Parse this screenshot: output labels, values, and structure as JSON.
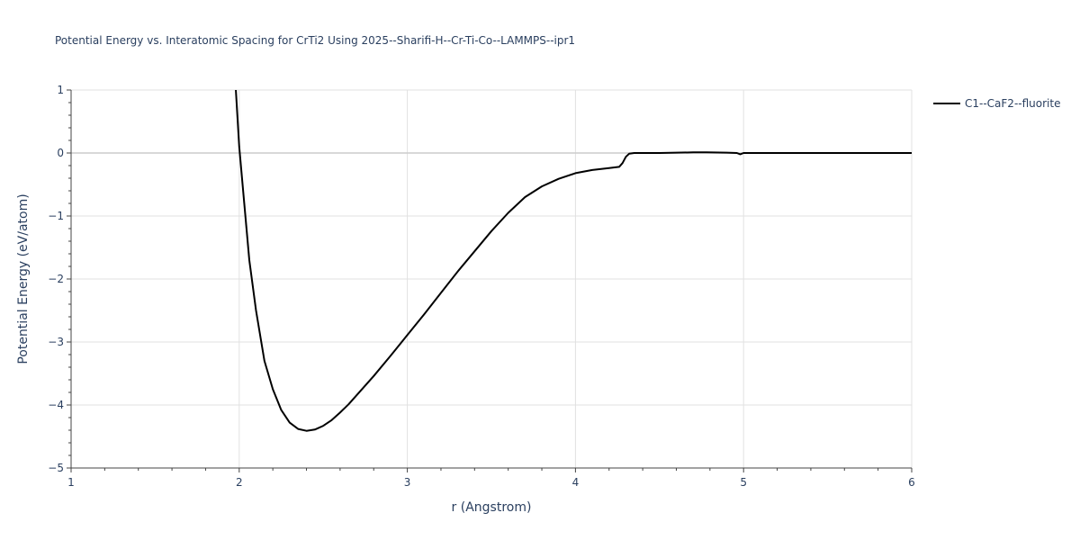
{
  "chart_data": {
    "type": "line",
    "title": "Potential Energy vs. Interatomic Spacing for CrTi2 Using 2025--Sharifi-H--Cr-Ti-Co--LAMMPS--ipr1",
    "xlabel": "r (Angstrom)",
    "ylabel": "Potential Energy (eV/atom)",
    "xlim": [
      1,
      6
    ],
    "ylim": [
      -5,
      1
    ],
    "x_ticks": [
      1,
      2,
      3,
      4,
      5,
      6
    ],
    "x_tick_labels": [
      "1",
      "2",
      "3",
      "4",
      "5",
      "6"
    ],
    "y_ticks": [
      1,
      0,
      -1,
      -2,
      -3,
      -4,
      -5
    ],
    "y_tick_labels": [
      "1",
      "0",
      "−1",
      "−2",
      "−3",
      "−4",
      "−5"
    ],
    "grid": true,
    "legend_position": "top-right",
    "series": [
      {
        "name": "C1--CaF2--fluorite",
        "color": "#000000",
        "x": [
          1.98,
          2.0,
          2.03,
          2.06,
          2.1,
          2.15,
          2.2,
          2.25,
          2.3,
          2.35,
          2.4,
          2.45,
          2.5,
          2.55,
          2.6,
          2.65,
          2.7,
          2.8,
          2.9,
          3.0,
          3.1,
          3.2,
          3.3,
          3.4,
          3.5,
          3.6,
          3.7,
          3.8,
          3.9,
          4.0,
          4.1,
          4.2,
          4.26,
          4.28,
          4.3,
          4.32,
          4.35,
          4.4,
          4.5,
          4.6,
          4.7,
          4.78,
          4.9,
          4.96,
          4.98,
          5.0,
          5.1,
          5.3,
          5.5,
          5.8,
          6.0
        ],
        "y": [
          1.0,
          0.1,
          -0.8,
          -1.7,
          -2.5,
          -3.3,
          -3.75,
          -4.08,
          -4.28,
          -4.38,
          -4.41,
          -4.39,
          -4.33,
          -4.24,
          -4.12,
          -3.99,
          -3.84,
          -3.54,
          -3.22,
          -2.89,
          -2.56,
          -2.22,
          -1.88,
          -1.56,
          -1.24,
          -0.95,
          -0.7,
          -0.53,
          -0.41,
          -0.32,
          -0.27,
          -0.24,
          -0.22,
          -0.16,
          -0.06,
          -0.01,
          0.0,
          0.0,
          0.0,
          0.005,
          0.01,
          0.01,
          0.005,
          0.0,
          -0.02,
          0.0,
          0.0,
          0.0,
          0.0,
          0.0,
          0.0
        ]
      }
    ]
  }
}
